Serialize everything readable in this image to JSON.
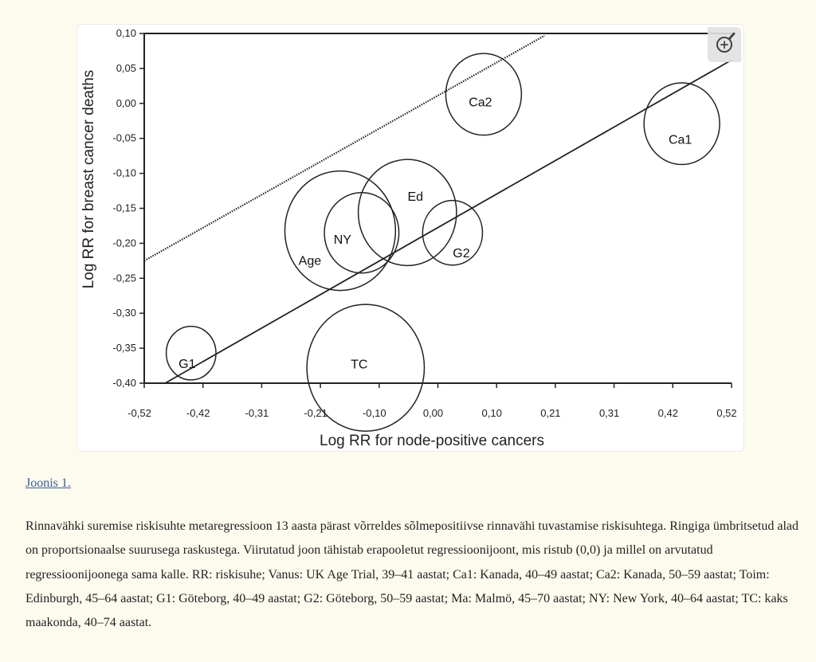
{
  "chart_data": {
    "type": "scatter",
    "subtype": "bubble",
    "xlabel": "Log RR for node-positive cancers",
    "ylabel": "Log RR for breast cancer deaths",
    "xlim": [
      -0.52,
      0.52
    ],
    "ylim": [
      -0.4,
      0.1
    ],
    "xticks": [
      "-0,52",
      "-0,42",
      "-0,31",
      "-0,21",
      "-0,10",
      "0,00",
      "0,10",
      "0,21",
      "0,31",
      "0,42",
      "0,52"
    ],
    "yticks": [
      "0,10",
      "0,05",
      "0,00",
      "-0,05",
      "-0,10",
      "-0,15",
      "-0,20",
      "-0,25",
      "-0,30",
      "-0,35",
      "-0,40"
    ],
    "points": [
      {
        "label": "Ca2",
        "x": 0.081,
        "y": 0.013,
        "size": 0.067
      },
      {
        "label": "Ca1",
        "x": 0.432,
        "y": -0.029,
        "size": 0.067
      },
      {
        "label": "Ed",
        "x": -0.054,
        "y": -0.156,
        "size": 0.087
      },
      {
        "label": "Age",
        "x": -0.173,
        "y": -0.182,
        "size": 0.098
      },
      {
        "label": "NY",
        "x": -0.135,
        "y": -0.185,
        "size": 0.066
      },
      {
        "label": "G2",
        "x": 0.026,
        "y": -0.185,
        "size": 0.053
      },
      {
        "label": "G1",
        "x": -0.437,
        "y": -0.357,
        "size": 0.044
      },
      {
        "label": "TC",
        "x": -0.128,
        "y": -0.378,
        "size": 0.104
      }
    ],
    "lines": [
      {
        "name": "regression",
        "style": "solid",
        "x": [
          -0.483,
          0.52
        ],
        "y": [
          -0.4,
          0.062
        ]
      },
      {
        "name": "unbiased regression through (0,0)",
        "style": "dotted",
        "x": [
          -0.52,
          0.189
        ],
        "y": [
          -0.225,
          0.097
        ]
      }
    ]
  },
  "figure_link": "Joonis 1.",
  "caption": "Rinnavähki suremise riskisuhte metaregressioon 13 aasta pärast võrreldes sõlmepositiivse rinnavähi tuvastamise riskisuhtega. Ringiga ümbritsetud alad on proportsionaalse suurusega raskustega. Viirutatud joon tähistab erapooletut regressioonijoont, mis ristub (0,0) ja millel on arvutatud regressioonijoonega sama kalle. RR: riskisuhe; Vanus: UK Age Trial, 39–41 aastat; Ca1: Kanada, 40–49 aastat; Ca2: Kanada, 50–59 aastat; Toim: Edinburgh, 45–64 aastat; G1: Göteborg, 40–49 aastat; G2: Göteborg, 50–59 aastat; Ma: Malmö, 45–70 aastat; NY: New York, 40–64 aastat; TC: kaks maakonda, 40–74 aastat.",
  "zoom_icon": "zoom-in-icon"
}
